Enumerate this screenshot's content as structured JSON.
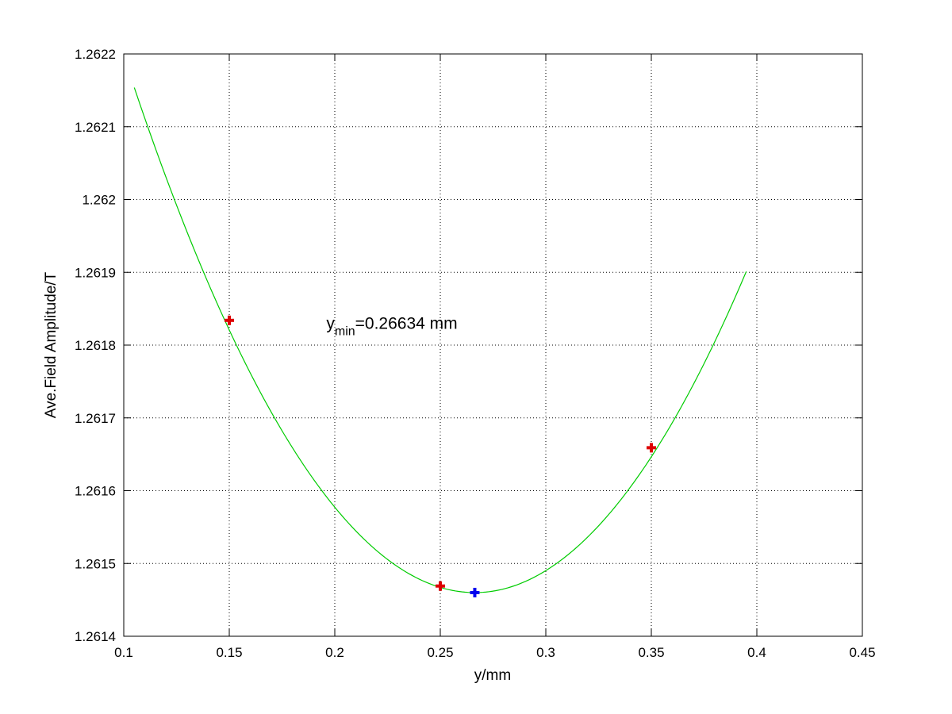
{
  "chart_data": {
    "type": "line",
    "title": "",
    "xlabel": "y/mm",
    "ylabel": "Ave.Field Amplitude/T",
    "xlim": [
      0.1,
      0.45
    ],
    "ylim": [
      1.2614,
      1.2622
    ],
    "x_ticks": [
      0.1,
      0.15,
      0.2,
      0.25,
      0.3,
      0.35,
      0.4,
      0.45
    ],
    "x_tick_labels": [
      "0.1",
      "0.15",
      "0.2",
      "0.25",
      "0.3",
      "0.35",
      "0.4",
      "0.45"
    ],
    "y_ticks": [
      1.2614,
      1.2615,
      1.2616,
      1.2617,
      1.2618,
      1.2619,
      1.262,
      1.2621,
      1.2622
    ],
    "y_tick_labels": [
      "1.2614",
      "1.2615",
      "1.2616",
      "1.2617",
      "1.2618",
      "1.2619",
      "1.262",
      "1.2621",
      "1.2622"
    ],
    "grid": true,
    "series": [
      {
        "kind": "fit-curve",
        "color": "#00cc00",
        "x_range": [
          0.105,
          0.395
        ],
        "quadratic": {
          "a": 0.02665,
          "vertex_x": 0.26634,
          "vertex_y": 1.26146
        }
      },
      {
        "kind": "measured-points",
        "marker": "plus",
        "color": "#dd0000",
        "x": [
          0.15,
          0.25,
          0.35
        ],
        "y": [
          1.261834,
          1.261469,
          1.261659
        ]
      },
      {
        "kind": "minimum-point",
        "marker": "plus",
        "color": "#0000ee",
        "x": [
          0.26634
        ],
        "y": [
          1.26146
        ]
      }
    ],
    "annotation": {
      "main": "y",
      "subscript": "min",
      "rest": "=0.26634 mm",
      "x": 0.196,
      "y": 1.26183
    }
  }
}
